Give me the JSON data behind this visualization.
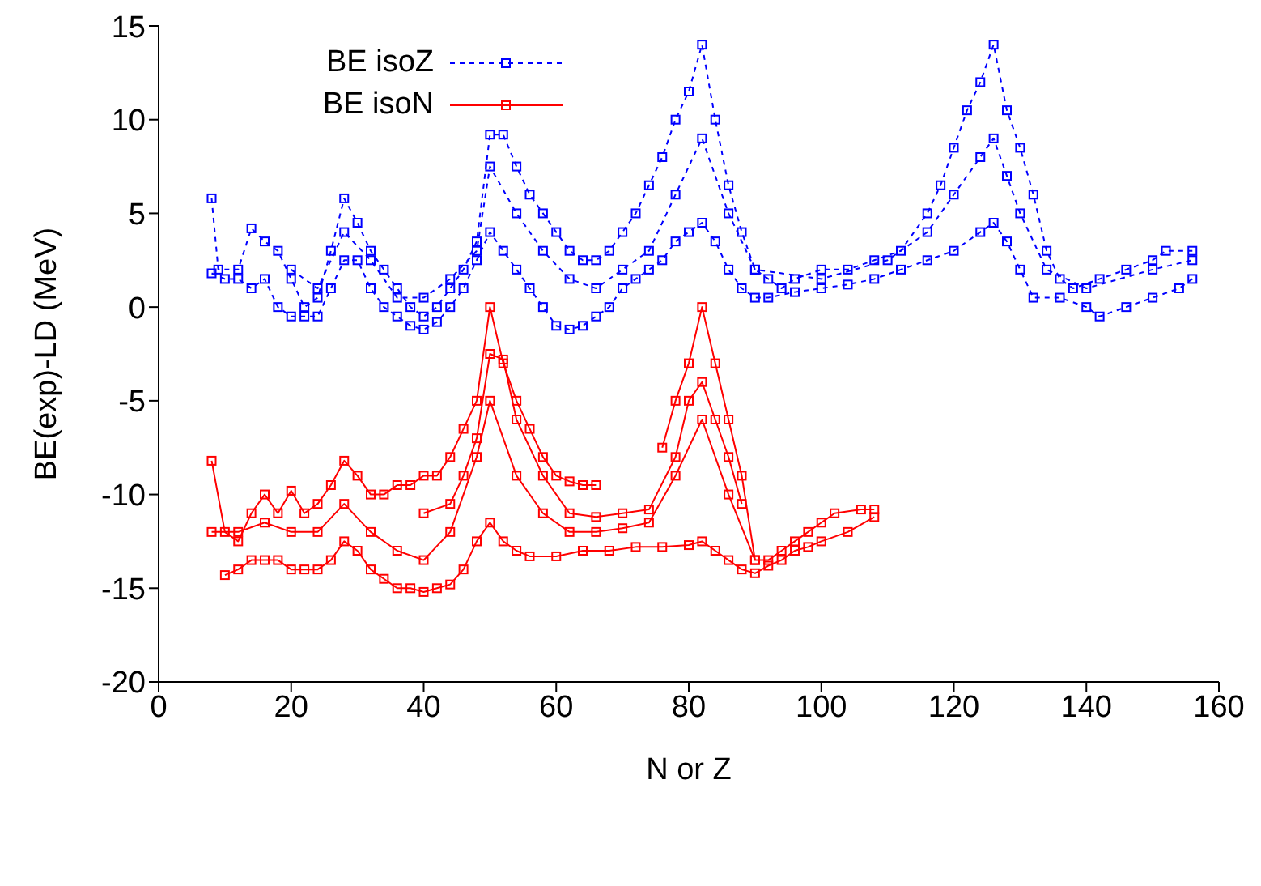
{
  "chart_data": {
    "type": "line",
    "xlabel": "N or Z",
    "ylabel": "BE(exp)-LD (MeV)",
    "xlim": [
      0,
      160
    ],
    "ylim": [
      -20,
      15
    ],
    "xticks": [
      0,
      20,
      40,
      60,
      80,
      100,
      120,
      140,
      160
    ],
    "yticks": [
      -20,
      -15,
      -10,
      -5,
      0,
      5,
      10,
      15
    ],
    "legend": "top left",
    "marker": "square",
    "series": [
      {
        "name": "BE isoZ",
        "color": "#0000ff",
        "line_style": "dashed",
        "x": [
          8,
          9,
          12,
          14,
          16,
          18,
          20,
          22,
          24,
          26,
          28,
          30,
          32,
          34,
          36,
          38,
          40,
          42,
          44,
          46,
          48,
          50,
          52,
          54,
          56,
          58,
          60,
          62,
          64,
          66,
          68,
          70,
          72,
          74,
          76,
          78,
          80,
          82,
          84,
          86,
          88,
          90,
          92,
          94,
          96,
          100,
          104,
          108,
          112,
          116,
          118,
          120,
          122,
          124,
          126,
          128,
          130,
          132,
          134,
          136,
          138,
          142,
          146,
          150,
          152,
          156
        ],
        "values": [
          5.8,
          2,
          2,
          4.2,
          3.5,
          3,
          1.5,
          0,
          0.5,
          3,
          5.8,
          4.5,
          3,
          2,
          1,
          0,
          -0.5,
          0,
          1,
          2,
          3.5,
          9.2,
          9.2,
          7.5,
          6,
          5,
          4,
          3,
          2.5,
          2.5,
          3,
          4,
          5,
          6.5,
          8,
          10,
          11.5,
          14,
          10,
          6.5,
          4,
          2,
          1.5,
          1,
          1.5,
          2,
          2,
          2.5,
          3,
          5,
          6.5,
          8.5,
          10.5,
          12,
          14,
          10.5,
          8.5,
          6,
          3,
          1.5,
          1,
          1.5,
          2,
          2.5,
          3,
          3
        ]
      },
      {
        "color": "#0000ff",
        "line_style": "dashed",
        "x": [
          8,
          10,
          12,
          14,
          16,
          18,
          20,
          22,
          24,
          26,
          28,
          30,
          32,
          34,
          36,
          38,
          40,
          42,
          44,
          46,
          48,
          50,
          52,
          54,
          56,
          58,
          60,
          62,
          64,
          66,
          68,
          70,
          72,
          74,
          76,
          78,
          80,
          82,
          84,
          86,
          88,
          90,
          92,
          96,
          100,
          104,
          108,
          112,
          116,
          120,
          124,
          126,
          128,
          130,
          132,
          136,
          140,
          142,
          146,
          150,
          154,
          156
        ],
        "values": [
          1.8,
          1.5,
          1.5,
          1,
          1.5,
          0,
          -0.5,
          -0.5,
          -0.5,
          1,
          2.5,
          2.5,
          1,
          0,
          -0.5,
          -1,
          -1.2,
          -0.8,
          0,
          1,
          2.5,
          4,
          3,
          2,
          1,
          0,
          -1,
          -1.2,
          -1,
          -0.5,
          0,
          1,
          1.5,
          2,
          2.5,
          3.5,
          4,
          4.5,
          3.5,
          2,
          1,
          0.5,
          0.5,
          0.8,
          1,
          1.2,
          1.5,
          2,
          2.5,
          3,
          4,
          4.5,
          3.5,
          2,
          0.5,
          0.5,
          0,
          -0.5,
          0,
          0.5,
          1,
          1.5
        ]
      },
      {
        "color": "#0000ff",
        "line_style": "dashed",
        "x": [
          20,
          24,
          28,
          32,
          36,
          40,
          44,
          48,
          50,
          54,
          58,
          62,
          66,
          70,
          74,
          78,
          82,
          86,
          90,
          100,
          110,
          116,
          120,
          124,
          126,
          128,
          130,
          134,
          140,
          150,
          156
        ],
        "values": [
          2,
          1,
          4,
          2.5,
          0.5,
          0.5,
          1.5,
          3,
          7.5,
          5,
          3,
          1.5,
          1,
          2,
          3,
          6,
          9,
          5,
          2,
          1.5,
          2.5,
          4,
          6,
          8,
          9,
          7,
          5,
          2,
          1,
          2,
          2.5
        ]
      },
      {
        "name": "BE isoN",
        "color": "#ff0000",
        "line_style": "solid",
        "x": [
          8,
          10,
          12,
          14,
          16,
          18,
          20,
          22,
          24,
          26,
          28,
          30,
          32,
          34,
          36,
          38,
          40,
          42,
          44,
          46,
          48,
          50,
          52,
          54,
          56,
          58,
          60,
          62,
          64,
          66
        ],
        "values": [
          -8.2,
          -12,
          -12.5,
          -11,
          -10,
          -11,
          -9.8,
          -11,
          -10.5,
          -9.5,
          -8.2,
          -9,
          -10,
          -10,
          -9.5,
          -9.5,
          -9,
          -9,
          -8,
          -6.5,
          -5,
          0,
          -3,
          -5,
          -6.5,
          -8,
          -9,
          -9.3,
          -9.5,
          -9.5
        ]
      },
      {
        "color": "#ff0000",
        "line_style": "solid",
        "x": [
          76,
          78,
          80,
          82,
          84,
          86,
          88,
          90,
          92,
          94,
          96,
          98,
          100,
          102,
          106,
          108
        ],
        "values": [
          -7.5,
          -5,
          -3,
          0,
          -3,
          -6,
          -9,
          -13.5,
          -13.5,
          -13,
          -12.5,
          -12,
          -11.5,
          -11,
          -10.8,
          -10.8
        ]
      },
      {
        "color": "#ff0000",
        "line_style": "solid",
        "x": [
          10,
          12,
          14,
          16,
          18,
          20,
          22,
          24,
          26,
          28,
          30,
          32,
          34,
          36,
          38,
          40,
          42,
          44,
          46,
          48,
          50,
          52,
          54,
          56,
          60,
          64,
          68,
          72,
          76,
          80,
          82,
          84,
          86,
          88,
          90,
          92,
          94,
          96,
          98,
          100,
          104,
          108
        ],
        "values": [
          -14.3,
          -14,
          -13.5,
          -13.5,
          -13.5,
          -14,
          -14,
          -14,
          -13.5,
          -12.5,
          -13,
          -14,
          -14.5,
          -15,
          -15,
          -15.2,
          -15,
          -14.8,
          -14,
          -12.5,
          -11.5,
          -12.5,
          -13,
          -13.3,
          -13.3,
          -13,
          -13,
          -12.8,
          -12.8,
          -12.7,
          -12.5,
          -13,
          -13.5,
          -14,
          -14.2,
          -13.8,
          -13.5,
          -13,
          -12.8,
          -12.5,
          -12,
          -11.2
        ]
      },
      {
        "color": "#ff0000",
        "line_style": "solid",
        "x": [
          8,
          12,
          16,
          20,
          24,
          28,
          32,
          36,
          40,
          44,
          48,
          50,
          54,
          58,
          62,
          66,
          70,
          74,
          78,
          82,
          86,
          90
        ],
        "values": [
          -12,
          -12,
          -11.5,
          -12,
          -12,
          -10.5,
          -12,
          -13,
          -13.5,
          -12,
          -8,
          -5,
          -9,
          -11,
          -12,
          -12,
          -11.8,
          -11.5,
          -9,
          -6,
          -10,
          -13.5
        ]
      },
      {
        "color": "#ff0000",
        "line_style": "solid",
        "x": [
          40,
          44,
          46,
          48,
          50,
          52,
          54,
          58,
          62,
          66,
          70,
          74,
          78,
          80,
          82,
          84,
          86,
          88
        ],
        "values": [
          -11,
          -10.5,
          -9,
          -7,
          -2.5,
          -2.8,
          -6,
          -9,
          -11,
          -11.2,
          -11,
          -10.8,
          -8,
          -5,
          -4,
          -6,
          -8,
          -10.5
        ]
      }
    ]
  }
}
